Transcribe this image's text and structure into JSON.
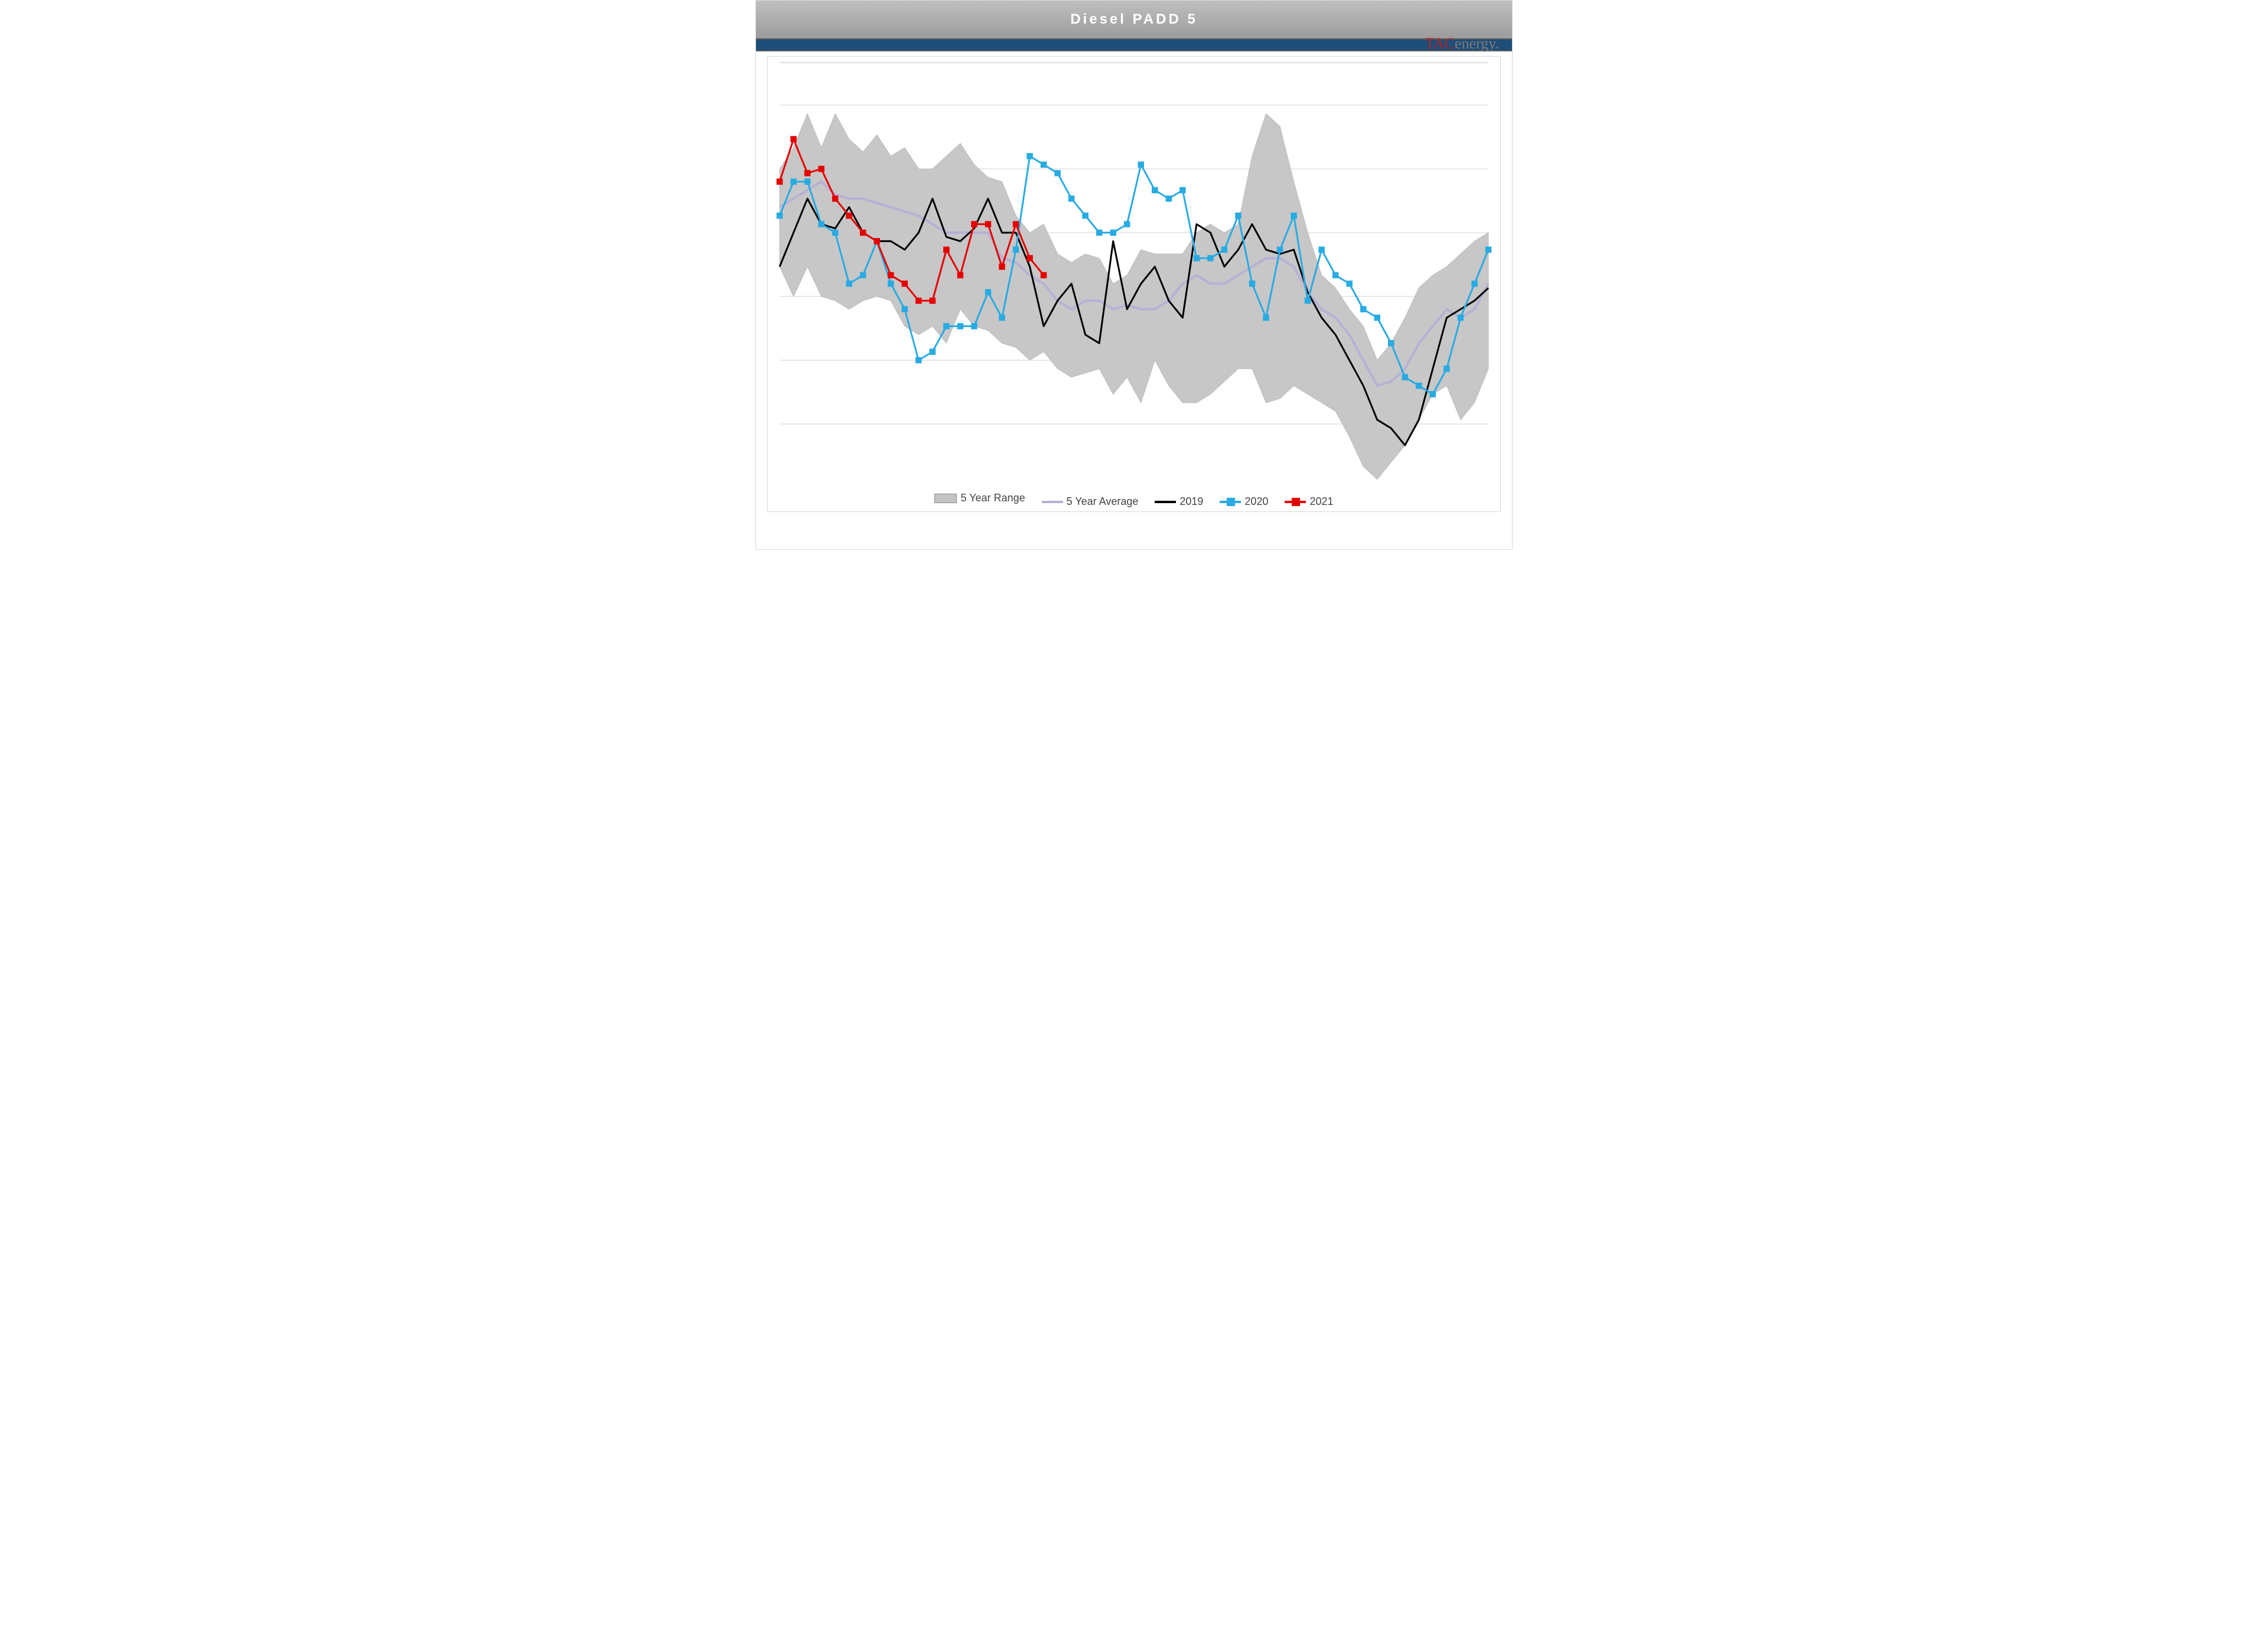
{
  "chart": {
    "type": "line-band",
    "title": "Diesel  PADD  5",
    "brand_html": "<span class='tac-red'>TAC</span>energy.",
    "background_color": "#ffffff",
    "title_bg_gradient": [
      "#bfbfbf",
      "#9c9c9c"
    ],
    "title_font_color": "#ffffff",
    "title_fontsize": 24,
    "accent_bar_color": "#1f4e79",
    "grid_color": "#d0d0d0",
    "axis_color": "#bfbfbf",
    "ylim": [
      0,
      100
    ],
    "grid_lines_y": [
      15,
      30,
      45,
      60,
      75,
      90
    ],
    "n_weeks": 52,
    "legend": [
      {
        "label": "5 Year Range",
        "type": "range",
        "color": "#c4c4c4",
        "visible": true
      },
      {
        "label": "5 Year Average",
        "type": "line",
        "color": "#b7b0d5",
        "visible": true
      },
      {
        "label": "2019",
        "type": "line",
        "color": "#000000",
        "visible": true
      },
      {
        "label": "2020",
        "type": "marker",
        "color": "#29abe2",
        "visible": true
      },
      {
        "label": "2021",
        "type": "marker",
        "color": "#e60000",
        "visible": true
      }
    ],
    "series": {
      "range_upper": [
        75,
        80,
        88,
        80,
        88,
        82,
        79,
        83,
        78,
        80,
        75,
        75,
        78,
        81,
        76,
        73,
        72,
        64,
        60,
        62,
        55,
        53,
        55,
        54,
        48,
        50,
        56,
        55,
        55,
        55,
        60,
        62,
        60,
        62,
        78,
        88,
        85,
        72,
        60,
        50,
        47,
        42,
        38,
        30,
        34,
        40,
        47,
        50,
        52,
        55,
        58,
        60
      ],
      "range_lower": [
        52,
        45,
        52,
        45,
        44,
        42,
        44,
        45,
        44,
        38,
        36,
        38,
        34,
        42,
        38,
        37,
        34,
        33,
        30,
        32,
        28,
        26,
        27,
        28,
        22,
        26,
        20,
        30,
        24,
        20,
        20,
        22,
        25,
        28,
        28,
        20,
        21,
        24,
        22,
        20,
        18,
        12,
        5,
        2,
        6,
        10,
        16,
        22,
        24,
        16,
        20,
        28
      ],
      "avg": [
        66,
        68,
        70,
        72,
        69,
        68,
        68,
        67,
        66,
        65,
        64,
        62,
        60,
        60,
        60,
        60,
        54,
        53,
        50,
        48,
        44,
        42,
        44,
        44,
        42,
        43,
        42,
        42,
        44,
        48,
        50,
        48,
        48,
        50,
        52,
        54,
        54,
        52,
        46,
        42,
        40,
        36,
        30,
        24,
        25,
        28,
        34,
        38,
        42,
        40,
        42,
        48
      ],
      "y2019": [
        52,
        60,
        68,
        62,
        61,
        66,
        60,
        58,
        58,
        56,
        60,
        68,
        59,
        58,
        61,
        68,
        60,
        60,
        52,
        38,
        44,
        48,
        36,
        34,
        58,
        42,
        48,
        52,
        44,
        40,
        62,
        60,
        52,
        56,
        62,
        56,
        55,
        56,
        46,
        40,
        36,
        30,
        24,
        16,
        14,
        10,
        16,
        28,
        40,
        42,
        44,
        47
      ],
      "y2020": [
        64,
        72,
        72,
        62,
        60,
        48,
        50,
        58,
        48,
        42,
        30,
        32,
        38,
        38,
        38,
        46,
        40,
        56,
        78,
        76,
        74,
        68,
        64,
        60,
        60,
        62,
        76,
        70,
        68,
        70,
        54,
        54,
        56,
        64,
        48,
        40,
        56,
        64,
        44,
        56,
        50,
        48,
        42,
        40,
        34,
        26,
        24,
        22,
        28,
        40,
        48,
        56
      ],
      "y2021": [
        72,
        82,
        74,
        75,
        68,
        64,
        60,
        58,
        50,
        48,
        44,
        44,
        56,
        50,
        62,
        62,
        52,
        62,
        54,
        50
      ]
    },
    "style": {
      "range_fill": "#c4c4c4",
      "range_stroke": "#bcbcbc",
      "avg_stroke": "#b7b0d5",
      "avg_width": 4,
      "y2019_stroke": "#000000",
      "y2019_width": 3,
      "y2020_stroke": "#29abe2",
      "y2020_width": 3,
      "y2020_marker": "square",
      "y2020_marker_fill": "#29abe2",
      "y2020_marker_size": 9,
      "y2021_stroke": "#e60000",
      "y2021_width": 3,
      "y2021_marker": "square",
      "y2021_marker_fill": "#e60000",
      "y2021_marker_size": 9
    }
  }
}
